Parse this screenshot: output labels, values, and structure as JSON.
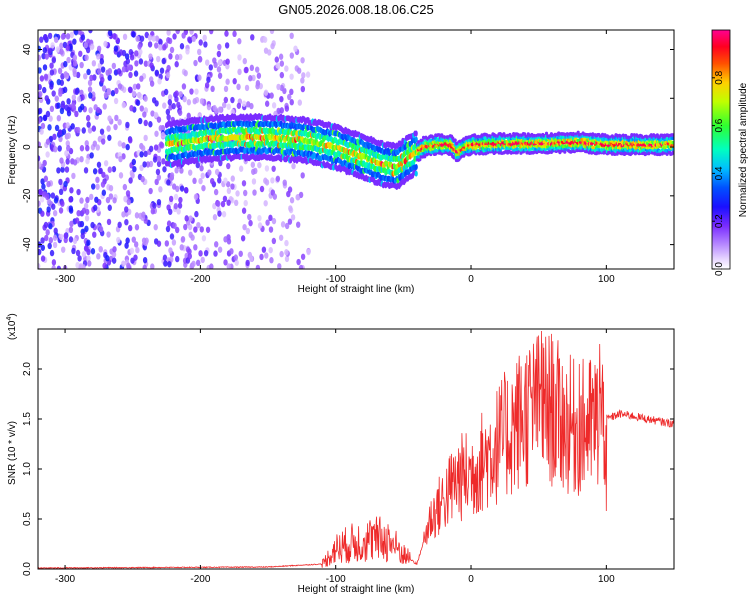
{
  "figure": {
    "title": "GN05.2026.008.18.06.C25"
  },
  "chart_data": [
    {
      "type": "heatmap",
      "title": "GN05.2026.008.18.06.C25",
      "xlabel": "Height of straight line (km)",
      "ylabel": "Frequency (Hz)",
      "xlim": [
        -320,
        150
      ],
      "ylim": [
        -50,
        48
      ],
      "xticks": [
        -300,
        -200,
        -100,
        0,
        100
      ],
      "yticks": [
        -40,
        -20,
        0,
        20,
        40
      ],
      "colorbar": {
        "label": "Normalized spectral amplitude",
        "range": [
          0,
          1
        ],
        "ticks": [
          0.0,
          0.2,
          0.4,
          0.6,
          0.8
        ]
      },
      "ridge": {
        "x": [
          -225,
          -200,
          -175,
          -150,
          -125,
          -100,
          -80,
          -65,
          -55,
          -45,
          -35,
          -25,
          -15,
          -10,
          -5,
          0,
          20,
          50,
          80,
          100,
          150
        ],
        "frequency": [
          1,
          3,
          4,
          4,
          3,
          0,
          -4,
          -7,
          -8,
          -4,
          0,
          1,
          1,
          -2,
          0,
          1,
          1.5,
          1.5,
          2,
          1,
          1
        ]
      },
      "noise_region_x": [
        -320,
        -130
      ]
    },
    {
      "type": "line",
      "title": "",
      "xlabel": "Height of straight line (km)",
      "ylabel": "SNR (10 * v/v)",
      "multiplier": "(x10",
      "multiplier_exp": "4",
      "multiplier_close": ")",
      "xlim": [
        -320,
        150
      ],
      "ylim": [
        0,
        2.4
      ],
      "xticks": [
        -300,
        -200,
        -100,
        0,
        100
      ],
      "yticks": [
        0.0,
        0.5,
        1.0,
        1.5,
        2.0
      ],
      "series": [
        {
          "name": "SNR",
          "color": "#ee2a2a",
          "x": [
            -320,
            -150,
            -110,
            -100,
            -90,
            -80,
            -70,
            -60,
            -50,
            -40,
            -30,
            -20,
            -10,
            0,
            10,
            20,
            30,
            40,
            50,
            60,
            70,
            80,
            90,
            100,
            110,
            120,
            130,
            150
          ],
          "values": [
            0.01,
            0.02,
            0.05,
            0.2,
            0.25,
            0.28,
            0.3,
            0.28,
            0.15,
            0.05,
            0.5,
            0.7,
            0.9,
            0.95,
            1.1,
            1.25,
            1.4,
            1.55,
            1.6,
            1.6,
            1.45,
            1.4,
            1.45,
            1.5,
            1.55,
            1.53,
            1.5,
            1.45
          ]
        }
      ],
      "spikes": [
        {
          "x": 52,
          "value": 2.38
        },
        {
          "x": 95,
          "value": 2.25
        },
        {
          "x": 48,
          "value": 2.1
        },
        {
          "x": 80,
          "value": 2.05
        },
        {
          "x": 100,
          "value": 0.58
        }
      ]
    }
  ]
}
